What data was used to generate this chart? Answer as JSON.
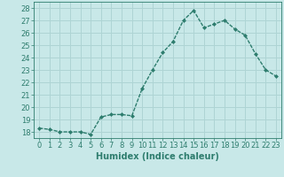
{
  "x": [
    0,
    1,
    2,
    3,
    4,
    5,
    6,
    7,
    8,
    9,
    10,
    11,
    12,
    13,
    14,
    15,
    16,
    17,
    18,
    19,
    20,
    21,
    22,
    23
  ],
  "y": [
    18.3,
    18.2,
    18.0,
    18.0,
    18.0,
    17.8,
    19.2,
    19.4,
    19.4,
    19.3,
    21.5,
    23.0,
    24.4,
    25.3,
    27.0,
    27.8,
    26.4,
    26.7,
    27.0,
    26.3,
    25.8,
    24.3,
    23.0,
    22.5
  ],
  "line_color": "#2e7d6e",
  "marker": "D",
  "marker_size": 2.0,
  "linewidth": 1.0,
  "bg_color": "#c8e8e8",
  "grid_color": "#aed4d4",
  "xlabel": "Humidex (Indice chaleur)",
  "ylim": [
    17.5,
    28.5
  ],
  "xlim": [
    -0.5,
    23.5
  ],
  "yticks": [
    18,
    19,
    20,
    21,
    22,
    23,
    24,
    25,
    26,
    27,
    28
  ],
  "xticks": [
    0,
    1,
    2,
    3,
    4,
    5,
    6,
    7,
    8,
    9,
    10,
    11,
    12,
    13,
    14,
    15,
    16,
    17,
    18,
    19,
    20,
    21,
    22,
    23
  ],
  "xlabel_fontsize": 7.0,
  "tick_fontsize": 6.0,
  "text_color": "#2e7d6e"
}
